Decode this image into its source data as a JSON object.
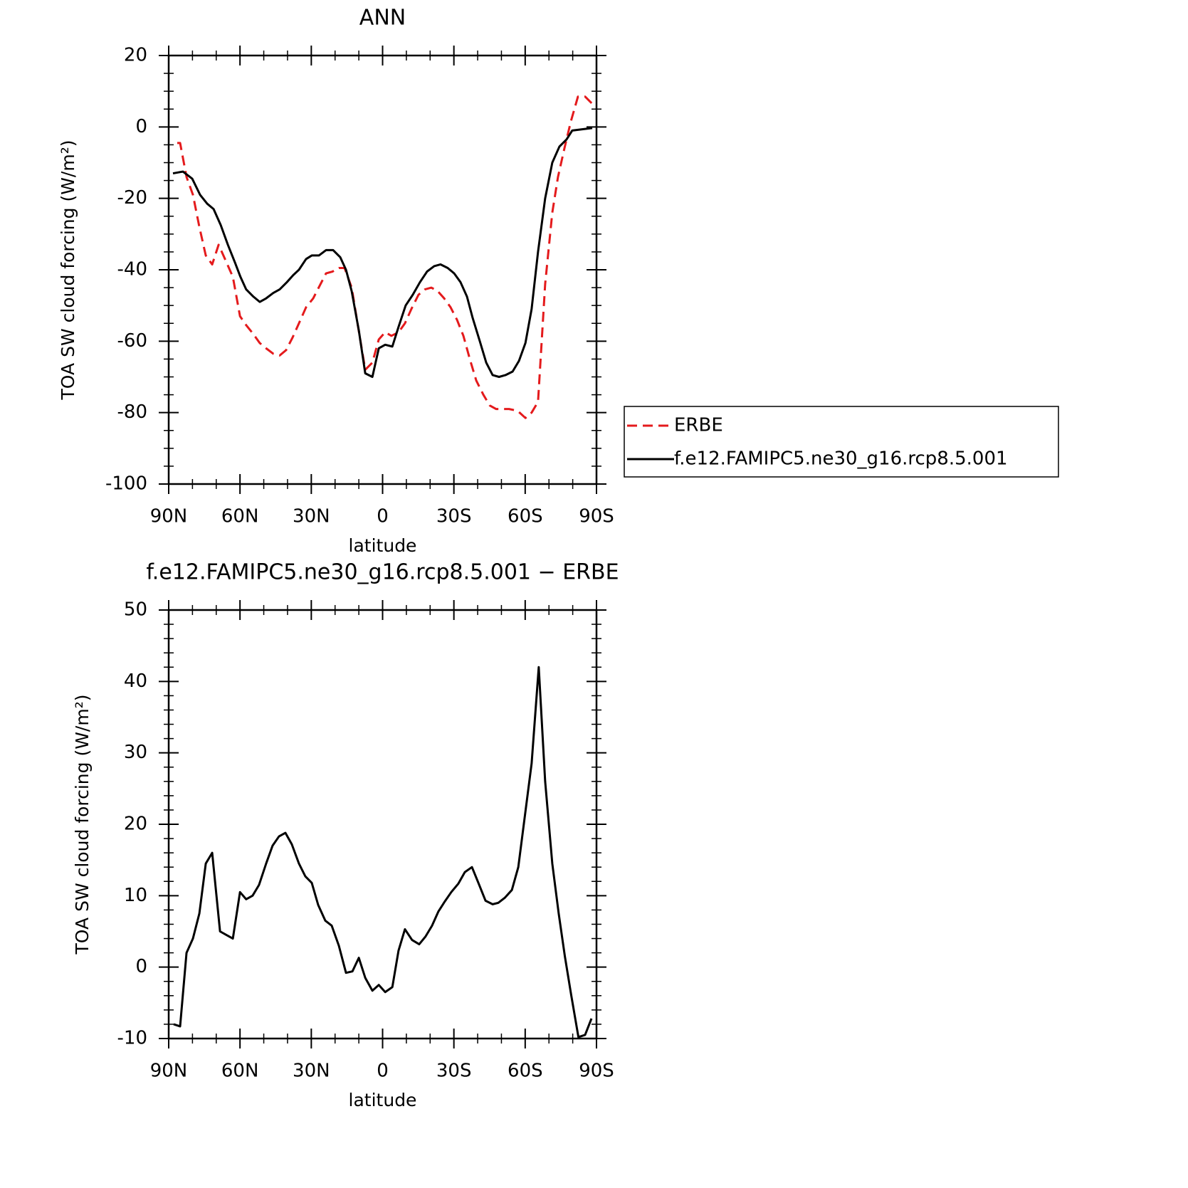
{
  "chart_data": [
    {
      "type": "line",
      "title": "ANN",
      "xlabel": "latitude",
      "ylabel": "TOA SW cloud forcing (W/m²)",
      "xlim": [
        90,
        -90
      ],
      "ylim": [
        -100,
        20
      ],
      "xticks": [
        {
          "value": 90,
          "label": "90N"
        },
        {
          "value": 60,
          "label": "60N"
        },
        {
          "value": 30,
          "label": "30N"
        },
        0,
        {
          "value": -30,
          "label": "30S"
        },
        {
          "value": -60,
          "label": "60S"
        },
        {
          "value": -90,
          "label": "90S"
        }
      ],
      "yticks": [
        -100,
        -80,
        -60,
        -40,
        -20,
        0,
        20
      ],
      "legend": "right",
      "series": [
        {
          "name": "ERBE",
          "color": "#e41a1c",
          "dash": true,
          "x": [
            86.4,
            85.2,
            82.5,
            79.8,
            77.1,
            74.4,
            71.7,
            69.0,
            66.3,
            63.0,
            60.0,
            57.4,
            54.4,
            51.7,
            49.0,
            46.0,
            43.3,
            40.6,
            37.9,
            35.2,
            32.2,
            29.2,
            26.5,
            23.8,
            21.1,
            18.4,
            16.0,
            13.0,
            10.3,
            7.3,
            4.3,
            1.6,
            -1.1,
            -3.7,
            -6.7,
            -9.4,
            -12.1,
            -15.1,
            -17.8,
            -20.5,
            -23.2,
            -25.9,
            -28.6,
            -31.3,
            -34.0,
            -36.7,
            -39.4,
            -42.4,
            -45.1,
            -47.8,
            -50.5,
            -53.2,
            -56.8,
            -60.1,
            -62.7,
            -65.4,
            -68.4,
            -71.4,
            -73.8,
            -76.5,
            -79.2,
            -82.2,
            -85.2,
            -88.2
          ],
          "values": [
            -4.5,
            -4.5,
            -14,
            -19,
            -28,
            -36,
            -38.5,
            -33,
            -37,
            -42,
            -53,
            -55.5,
            -58,
            -60.5,
            -62,
            -63.5,
            -64,
            -62.5,
            -59,
            -55,
            -50.5,
            -48,
            -44.5,
            -41,
            -40.5,
            -39.5,
            -39.5,
            -45,
            -56,
            -68,
            -66,
            -59.5,
            -57.5,
            -58.5,
            -57.5,
            -55,
            -51,
            -47,
            -45.5,
            -45,
            -46,
            -48,
            -50.5,
            -54,
            -58.5,
            -65,
            -71,
            -75,
            -78,
            -79,
            -79,
            -79,
            -79.5,
            -81.5,
            -80,
            -77,
            -44,
            -24,
            -14,
            -6,
            1.5,
            8.5,
            8.5,
            6.5
          ]
        },
        {
          "name": "f.e12.FAMIPC5.ne30_g16.rcp8.5.001",
          "color": "#000000",
          "dash": false,
          "x": [
            88.2,
            84.0,
            80.1,
            76.8,
            73.8,
            71.1,
            68.1,
            65.1,
            62.1,
            59.8,
            57.4,
            54.4,
            51.7,
            49.0,
            46.0,
            43.3,
            40.3,
            37.6,
            35.2,
            32.2,
            29.8,
            26.8,
            23.8,
            20.8,
            17.8,
            15.4,
            13.0,
            10.0,
            7.3,
            4.3,
            1.6,
            -1.1,
            -4.1,
            -6.7,
            -9.7,
            -12.7,
            -15.7,
            -18.7,
            -21.7,
            -24.4,
            -27.4,
            -30.1,
            -32.8,
            -35.5,
            -37.9,
            -40.9,
            -43.6,
            -46.3,
            -49.0,
            -51.7,
            -54.7,
            -57.4,
            -60.1,
            -62.7,
            -65.4,
            -68.4,
            -71.4,
            -74.4,
            -77.4,
            -79.8,
            -88.2
          ],
          "values": [
            -13,
            -12.5,
            -14.5,
            -19,
            -21.5,
            -23,
            -27.5,
            -33,
            -38,
            -42,
            -45.5,
            -47.5,
            -49,
            -48,
            -46.5,
            -45.5,
            -43.5,
            -41.5,
            -40,
            -37,
            -36,
            -36,
            -34.5,
            -34.5,
            -36.5,
            -40,
            -46,
            -57,
            -69,
            -70,
            -62,
            -61,
            -61.5,
            -56,
            -50,
            -47,
            -43.5,
            -40.5,
            -39,
            -38.5,
            -39.5,
            -41,
            -43.5,
            -47.5,
            -53.5,
            -60,
            -66,
            -69.5,
            -70,
            -69.5,
            -68.5,
            -65.5,
            -60.5,
            -51,
            -35,
            -20,
            -10,
            -5.5,
            -3.5,
            -1,
            -0.3
          ]
        }
      ]
    },
    {
      "type": "line",
      "title": "f.e12.FAMIPC5.ne30_g16.rcp8.5.001 − ERBE",
      "xlabel": "latitude",
      "ylabel": "TOA SW cloud forcing (W/m²)",
      "xlim": [
        90,
        -90
      ],
      "ylim": [
        -10,
        50
      ],
      "xticks": [
        {
          "value": 90,
          "label": "90N"
        },
        {
          "value": 60,
          "label": "60N"
        },
        {
          "value": 30,
          "label": "30N"
        },
        0,
        {
          "value": -30,
          "label": "30S"
        },
        {
          "value": -60,
          "label": "60S"
        },
        {
          "value": -90,
          "label": "90S"
        }
      ],
      "yticks": [
        -10,
        0,
        10,
        20,
        30,
        40,
        50
      ],
      "color": "#000000",
      "x": [
        87.9,
        85.2,
        82.5,
        79.8,
        77.1,
        74.4,
        71.7,
        68.4,
        65.7,
        63.0,
        60.0,
        57.4,
        54.7,
        52.0,
        49.0,
        46.3,
        43.6,
        40.9,
        38.2,
        35.2,
        32.5,
        29.8,
        27.1,
        24.1,
        21.4,
        18.4,
        15.4,
        12.7,
        10.0,
        7.3,
        4.3,
        1.6,
        -1.1,
        -4.1,
        -6.7,
        -9.4,
        -12.4,
        -15.4,
        -18.1,
        -20.8,
        -23.5,
        -26.2,
        -28.9,
        -31.9,
        -34.6,
        -37.6,
        -40.3,
        -43.3,
        -46.3,
        -48.7,
        -51.4,
        -54.4,
        -57.1,
        -59.8,
        -62.7,
        -65.7,
        -68.4,
        -71.4,
        -74.1,
        -76.7,
        -79.4,
        -82.4,
        -85.2,
        -87.9
      ],
      "values": [
        -8,
        -8.3,
        2,
        4,
        7.5,
        14.5,
        16,
        5,
        4.5,
        4,
        10.5,
        9.5,
        10,
        11.5,
        14.5,
        17,
        18.3,
        18.8,
        17.2,
        14.5,
        12.7,
        11.8,
        8.7,
        6.5,
        5.8,
        3,
        -0.8,
        -0.6,
        1.3,
        -1.5,
        -3.3,
        -2.5,
        -3.5,
        -2.8,
        2.3,
        5.3,
        3.8,
        3.2,
        4.3,
        5.8,
        7.8,
        9.2,
        10.5,
        11.7,
        13.3,
        14,
        11.8,
        9.3,
        8.8,
        9,
        9.7,
        10.8,
        14,
        21,
        28.5,
        42,
        26,
        14.5,
        7.5,
        1.5,
        -4,
        -9.8,
        -9.5,
        -7.2
      ]
    }
  ]
}
